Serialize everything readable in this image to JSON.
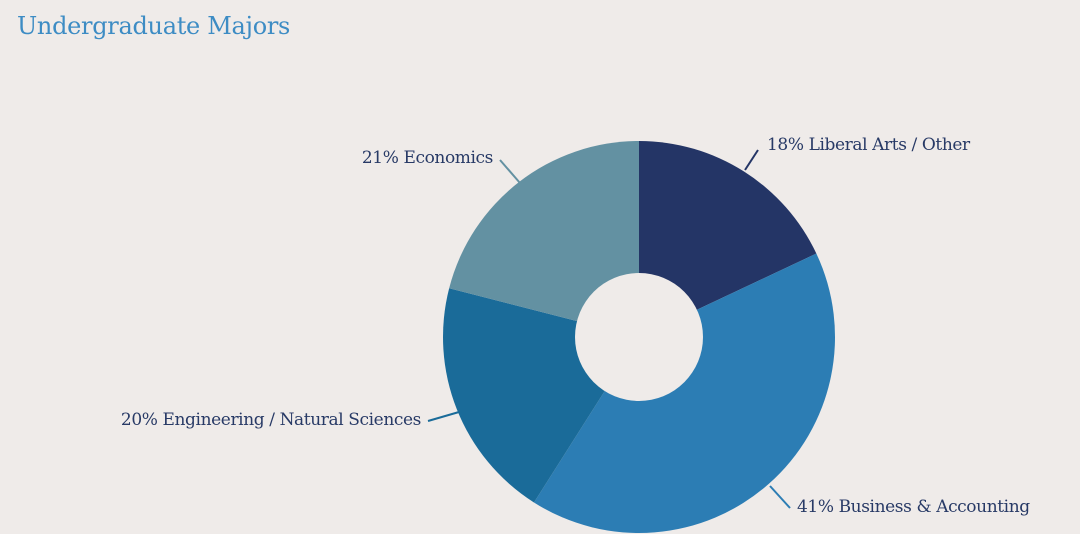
{
  "chart_data": {
    "type": "pie",
    "variant": "donut",
    "title": "Undergraduate Majors",
    "slices": [
      {
        "label": "18% Liberal Arts / Other",
        "value": 18,
        "color": "#243566"
      },
      {
        "label": "41% Business & Accounting",
        "value": 41,
        "color": "#2c7db4"
      },
      {
        "label": "20% Engineering / Natural Sciences",
        "value": 20,
        "color": "#1a6b99"
      },
      {
        "label": "21% Economics",
        "value": 21,
        "color": "#6391a2"
      }
    ],
    "start": "12 o'clock",
    "direction": "clockwise"
  },
  "colors": {
    "background": "#efebe9",
    "title": "#3d8cc4",
    "label_text": "#283a66"
  }
}
